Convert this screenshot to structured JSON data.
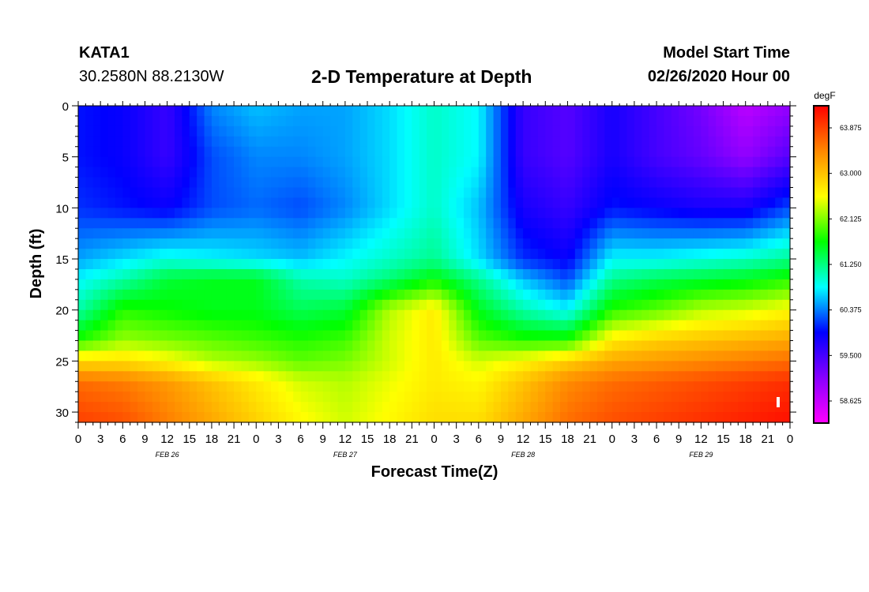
{
  "header": {
    "station": "KATA1",
    "location": "30.2580N 88.2130W",
    "title": "2-D Temperature at Depth",
    "model_start_label": "Model Start Time",
    "model_start_time": "02/26/2020 Hour 00"
  },
  "chart_data": {
    "type": "heatmap",
    "title": "2-D Temperature at Depth",
    "xlabel": "Forecast Time(Z)",
    "ylabel": "Depth (ft)",
    "x_tick_labels": [
      "0",
      "3",
      "6",
      "9",
      "12",
      "15",
      "18",
      "21",
      "0",
      "3",
      "6",
      "9",
      "12",
      "15",
      "18",
      "21",
      "0",
      "3",
      "6",
      "9",
      "12",
      "15",
      "18",
      "21",
      "0",
      "3",
      "6",
      "9",
      "12",
      "15",
      "18",
      "21",
      "0"
    ],
    "x_range_hours": [
      0,
      96
    ],
    "date_labels": [
      {
        "label": "FEB 26",
        "hour": 12
      },
      {
        "label": "FEB 27",
        "hour": 36
      },
      {
        "label": "FEB 28",
        "hour": 60
      },
      {
        "label": "FEB 29",
        "hour": 84
      }
    ],
    "y_ticks": [
      0,
      5,
      10,
      15,
      20,
      25,
      30
    ],
    "ylim": [
      0,
      31
    ],
    "y_inverted": true,
    "colorbar": {
      "units": "degF",
      "range": [
        58.2,
        64.3
      ],
      "tick_labels": [
        "63.875",
        "63.000",
        "62.125",
        "61.250",
        "60.375",
        "59.500",
        "58.625"
      ],
      "colors": [
        "#ff00ff",
        "#8800ff",
        "#0000ff",
        "#00ffff",
        "#00ff00",
        "#ffff00",
        "#ff8800",
        "#ff0000"
      ]
    },
    "hours": [
      0,
      6,
      12,
      18,
      24,
      30,
      36,
      42,
      48,
      54,
      60,
      66,
      72,
      78,
      84,
      90,
      96
    ],
    "depths": [
      0,
      5,
      10,
      15,
      17,
      20,
      23,
      25,
      27,
      31
    ],
    "values": [
      [
        60.0,
        59.9,
        59.6,
        60.4,
        60.6,
        60.5,
        60.5,
        60.7,
        61.0,
        60.8,
        59.6,
        59.4,
        59.8,
        59.5,
        59.2,
        58.7,
        59.0
      ],
      [
        60.0,
        59.9,
        59.6,
        60.2,
        60.4,
        60.4,
        60.5,
        60.7,
        61.0,
        60.8,
        59.6,
        59.4,
        59.8,
        59.5,
        59.3,
        59.0,
        59.4
      ],
      [
        60.1,
        60.0,
        59.9,
        60.2,
        60.3,
        60.2,
        60.4,
        60.7,
        61.0,
        60.6,
        59.8,
        59.6,
        60.0,
        59.9,
        59.8,
        59.8,
        60.2
      ],
      [
        60.5,
        60.7,
        60.9,
        60.8,
        60.7,
        60.6,
        60.8,
        61.0,
        61.2,
        60.7,
        60.1,
        59.9,
        60.8,
        60.8,
        60.9,
        61.0,
        61.2
      ],
      [
        60.8,
        61.1,
        61.5,
        61.6,
        61.6,
        61.1,
        61.0,
        61.3,
        61.7,
        61.2,
        60.6,
        60.2,
        61.2,
        61.4,
        61.5,
        61.6,
        61.8
      ],
      [
        61.1,
        61.8,
        61.7,
        61.6,
        61.6,
        61.4,
        61.5,
        62.3,
        62.7,
        61.6,
        61.1,
        60.8,
        61.8,
        62.0,
        62.3,
        62.4,
        62.6
      ],
      [
        61.8,
        62.2,
        62.1,
        62.0,
        61.9,
        61.8,
        61.9,
        62.4,
        62.7,
        62.0,
        61.8,
        61.8,
        62.7,
        62.9,
        63.0,
        63.1,
        63.2
      ],
      [
        62.8,
        62.8,
        62.6,
        62.3,
        62.2,
        62.0,
        62.1,
        62.4,
        62.7,
        62.4,
        62.6,
        62.9,
        63.2,
        63.3,
        63.4,
        63.5,
        63.6
      ],
      [
        63.6,
        63.5,
        63.3,
        63.0,
        62.7,
        62.4,
        62.3,
        62.5,
        62.7,
        62.6,
        63.0,
        63.4,
        63.6,
        63.7,
        63.8,
        63.9,
        64.0
      ],
      [
        63.9,
        63.8,
        63.5,
        63.2,
        62.9,
        62.6,
        62.4,
        62.6,
        62.8,
        62.8,
        63.2,
        63.6,
        63.8,
        63.9,
        64.0,
        64.1,
        64.2
      ]
    ]
  }
}
